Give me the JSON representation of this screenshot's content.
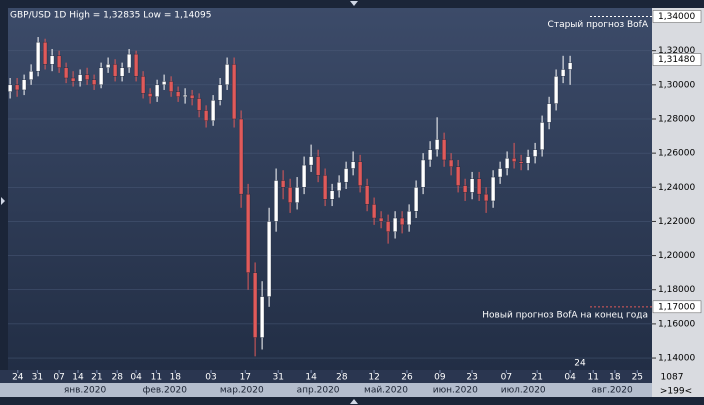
{
  "chart_data": {
    "type": "candlestick",
    "title": "GBP/USD 1D  High = 1,32835  Low = 1,14095",
    "open": [
      1.296,
      1.3,
      1.297,
      1.303,
      1.308,
      1.325,
      1.312,
      1.317,
      1.31,
      1.304,
      1.302,
      1.306,
      1.303,
      1.3,
      1.31,
      1.312,
      1.305,
      1.31,
      1.318,
      1.305,
      1.295,
      1.293,
      1.3,
      1.302,
      1.296,
      1.293,
      1.294,
      1.292,
      1.285,
      1.279,
      1.291,
      1.3,
      1.312,
      1.28,
      1.236,
      1.19,
      1.152,
      1.176,
      1.22,
      1.244,
      1.24,
      1.231,
      1.24,
      1.253,
      1.258,
      1.247,
      1.233,
      1.238,
      1.243,
      1.251,
      1.255,
      1.241,
      1.23,
      1.222,
      1.22,
      1.214,
      1.222,
      1.218,
      1.226,
      1.24,
      1.256,
      1.262,
      1.268,
      1.256,
      1.252,
      1.241,
      1.237,
      1.245,
      1.236,
      1.232,
      1.246,
      1.251,
      1.257,
      1.255,
      1.254,
      1.258,
      1.262,
      1.278,
      1.289,
      1.305,
      1.309
    ],
    "high": [
      1.304,
      1.304,
      1.306,
      1.312,
      1.328,
      1.327,
      1.321,
      1.32,
      1.313,
      1.308,
      1.309,
      1.31,
      1.306,
      1.313,
      1.316,
      1.315,
      1.313,
      1.321,
      1.32,
      1.308,
      1.298,
      1.303,
      1.306,
      1.305,
      1.299,
      1.298,
      1.297,
      1.295,
      1.288,
      1.294,
      1.304,
      1.316,
      1.316,
      1.285,
      1.242,
      1.196,
      1.185,
      1.228,
      1.251,
      1.25,
      1.245,
      1.246,
      1.258,
      1.265,
      1.262,
      1.251,
      1.242,
      1.247,
      1.255,
      1.261,
      1.259,
      1.245,
      1.234,
      1.226,
      1.224,
      1.226,
      1.226,
      1.23,
      1.244,
      1.26,
      1.267,
      1.281,
      1.272,
      1.26,
      1.256,
      1.245,
      1.249,
      1.249,
      1.24,
      1.25,
      1.255,
      1.261,
      1.266,
      1.259,
      1.262,
      1.266,
      1.282,
      1.293,
      1.309,
      1.317,
      1.317
    ],
    "low": [
      1.292,
      1.293,
      1.294,
      1.3,
      1.305,
      1.309,
      1.308,
      1.307,
      1.301,
      1.299,
      1.299,
      1.3,
      1.297,
      1.298,
      1.307,
      1.302,
      1.302,
      1.307,
      1.302,
      1.292,
      1.289,
      1.29,
      1.297,
      1.293,
      1.29,
      1.289,
      1.288,
      1.281,
      1.275,
      1.276,
      1.288,
      1.297,
      1.275,
      1.228,
      1.18,
      1.141,
      1.145,
      1.17,
      1.214,
      1.233,
      1.225,
      1.227,
      1.236,
      1.249,
      1.243,
      1.229,
      1.229,
      1.234,
      1.239,
      1.247,
      1.237,
      1.226,
      1.218,
      1.216,
      1.207,
      1.21,
      1.213,
      1.214,
      1.222,
      1.236,
      1.252,
      1.258,
      1.252,
      1.247,
      1.237,
      1.232,
      1.233,
      1.232,
      1.225,
      1.228,
      1.242,
      1.247,
      1.251,
      1.25,
      1.25,
      1.254,
      1.258,
      1.274,
      1.285,
      1.301,
      1.3
    ],
    "close": [
      1.3,
      1.297,
      1.303,
      1.308,
      1.325,
      1.312,
      1.317,
      1.31,
      1.304,
      1.302,
      1.306,
      1.303,
      1.3,
      1.31,
      1.312,
      1.305,
      1.31,
      1.318,
      1.305,
      1.295,
      1.293,
      1.3,
      1.302,
      1.296,
      1.293,
      1.294,
      1.292,
      1.285,
      1.279,
      1.291,
      1.3,
      1.312,
      1.28,
      1.236,
      1.19,
      1.152,
      1.176,
      1.22,
      1.244,
      1.24,
      1.231,
      1.24,
      1.253,
      1.258,
      1.247,
      1.233,
      1.238,
      1.243,
      1.251,
      1.255,
      1.241,
      1.23,
      1.222,
      1.22,
      1.214,
      1.222,
      1.218,
      1.226,
      1.24,
      1.256,
      1.262,
      1.268,
      1.256,
      1.252,
      1.241,
      1.237,
      1.245,
      1.236,
      1.232,
      1.246,
      1.251,
      1.257,
      1.255,
      1.254,
      1.258,
      1.262,
      1.278,
      1.289,
      1.305,
      1.309,
      1.313
    ],
    "up_color": "#ffffff",
    "down_color": "#e05a5a",
    "xlim": [
      -0.3,
      91.7
    ],
    "xticks": [
      {
        "value": 1.1,
        "label": "24"
      },
      {
        "value": 3.9,
        "label": "31"
      },
      {
        "value": 7,
        "label": "07"
      },
      {
        "value": 9.7,
        "label": "14"
      },
      {
        "value": 12.4,
        "label": "21"
      },
      {
        "value": 15.3,
        "label": "28"
      },
      {
        "value": 18,
        "label": "04"
      },
      {
        "value": 20.9,
        "label": "11"
      },
      {
        "value": 23.6,
        "label": "18"
      },
      {
        "value": 28.7,
        "label": "03"
      },
      {
        "value": 33.6,
        "label": "17"
      },
      {
        "value": 38.3,
        "label": "31"
      },
      {
        "value": 43,
        "label": "14"
      },
      {
        "value": 47.4,
        "label": "28"
      },
      {
        "value": 52,
        "label": "12"
      },
      {
        "value": 56.7,
        "label": "26"
      },
      {
        "value": 61.4,
        "label": "09"
      },
      {
        "value": 66,
        "label": "23"
      },
      {
        "value": 70.9,
        "label": "07"
      },
      {
        "value": 75.3,
        "label": "21"
      },
      {
        "value": 80,
        "label": "04"
      },
      {
        "value": 83.3,
        "label": "11"
      },
      {
        "value": 86.4,
        "label": "18"
      },
      {
        "value": 89.6,
        "label": "25"
      }
    ],
    "month_labels": [
      {
        "value": 10.7,
        "label": "янв.2020"
      },
      {
        "value": 22.1,
        "label": "фев.2020"
      },
      {
        "value": 33.1,
        "label": "мар.2020"
      },
      {
        "value": 44,
        "label": "апр.2020"
      },
      {
        "value": 53.7,
        "label": "май.2020"
      },
      {
        "value": 63.6,
        "label": "июн.2020"
      },
      {
        "value": 73.3,
        "label": "июл.2020"
      },
      {
        "value": 86,
        "label": "авг.2020"
      }
    ],
    "ylim": [
      1.133,
      1.345
    ],
    "yticks": [
      {
        "value": 1.14,
        "label": "1,14000"
      },
      {
        "value": 1.16,
        "label": "1,16000"
      },
      {
        "value": 1.18,
        "label": "1,18000"
      },
      {
        "value": 1.2,
        "label": "1,20000"
      },
      {
        "value": 1.22,
        "label": "1,22000"
      },
      {
        "value": 1.24,
        "label": "1,24000"
      },
      {
        "value": 1.26,
        "label": "1,26000"
      },
      {
        "value": 1.28,
        "label": "1,28000"
      },
      {
        "value": 1.3,
        "label": "1,30000"
      },
      {
        "value": 1.32,
        "label": "1,32000"
      }
    ],
    "grid": true,
    "annotations": [
      {
        "value": 1.34,
        "label": "1,34000",
        "text": "Старый прогноз BofA",
        "color": "#ffffff"
      },
      {
        "value": 1.17,
        "label": "1,17000",
        "text": "Новый прогноз BofA на конец года",
        "color": "#e05a5a"
      }
    ],
    "last_price": {
      "value": 1.3148,
      "label": "1,31480"
    },
    "cursor_label": "24",
    "bar_count": "1087",
    "scroll_label": ">199<"
  }
}
